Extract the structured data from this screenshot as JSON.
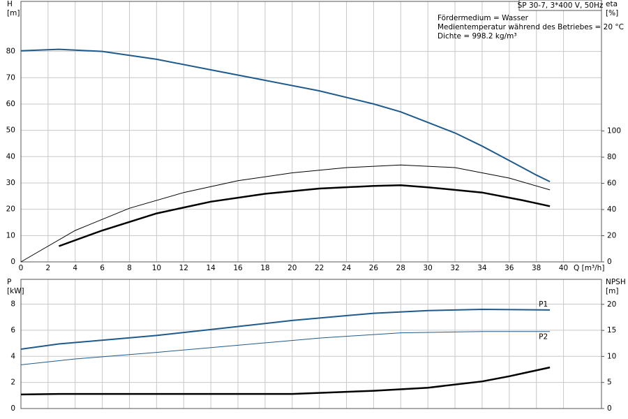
{
  "chart_data": [
    {
      "type": "line",
      "title": "SP 30-7, 3*400 V, 50Hz",
      "annotations": [
        "Fördermedium = Wasser",
        "Medientemperatur während des Betriebes = 20 °C",
        "Dichte = 998.2 kg/m³"
      ],
      "ylabel": [
        "H",
        "[m]"
      ],
      "y2label": [
        "eta",
        "[%]"
      ],
      "xlabel": "Q [m³/h]",
      "xlim": [
        0,
        42.8
      ],
      "xticks": [
        0,
        2,
        4,
        6,
        8,
        10,
        12,
        14,
        16,
        18,
        20,
        22,
        24,
        26,
        28,
        30,
        32,
        34,
        36,
        38,
        40
      ],
      "ylim": [
        0,
        99
      ],
      "yticks": [
        0,
        10,
        20,
        30,
        40,
        50,
        60,
        70,
        80
      ],
      "y2lim": [
        0,
        199
      ],
      "y2ticks": [
        0,
        20,
        40,
        60,
        80,
        100
      ],
      "show_xtick_labels": true,
      "grid": true,
      "series": [
        {
          "color": "#1f5a8c",
          "linewidth": 2,
          "axis": "y",
          "x": [
            0,
            2.8,
            6,
            10,
            14,
            18,
            22,
            26,
            28,
            30,
            32,
            34,
            36,
            38,
            39
          ],
          "values": [
            80.2,
            80.8,
            80,
            77,
            73,
            69,
            65,
            60,
            57,
            53,
            49,
            44,
            38.5,
            33,
            30.5
          ]
        },
        {
          "color": "#000000",
          "linewidth": 1,
          "axis": "y2",
          "x": [
            0,
            4,
            8,
            12,
            16,
            20,
            24,
            28,
            32,
            36,
            39
          ],
          "values": [
            0,
            24,
            41,
            53,
            62,
            68,
            72,
            74,
            72,
            64,
            55
          ]
        },
        {
          "color": "#000000",
          "linewidth": 2.5,
          "axis": "y2",
          "x": [
            2.8,
            6,
            10,
            14,
            18,
            22,
            26,
            28,
            30,
            34,
            37,
            39
          ],
          "values": [
            12,
            24,
            37,
            46,
            52,
            56,
            58,
            58.5,
            57,
            53,
            47,
            42.5
          ]
        }
      ]
    },
    {
      "type": "line",
      "ylabel": [
        "P",
        "[kW]"
      ],
      "y2label": [
        "NPSH",
        "[m]"
      ],
      "xlim": [
        0,
        42.8
      ],
      "xticks": [
        0,
        2,
        4,
        6,
        8,
        10,
        12,
        14,
        16,
        18,
        20,
        22,
        24,
        26,
        28,
        30,
        32,
        34,
        36,
        38,
        40
      ],
      "ylim": [
        0,
        9.9
      ],
      "yticks": [
        0,
        2,
        4,
        6,
        8
      ],
      "y2lim": [
        0,
        24.8
      ],
      "y2ticks": [
        0,
        5,
        10,
        15,
        20
      ],
      "show_xtick_labels": false,
      "grid": true,
      "series": [
        {
          "name": "P1",
          "color": "#1f5a8c",
          "linewidth": 2,
          "axis": "y",
          "x": [
            0,
            2.8,
            10,
            14,
            20,
            26,
            30,
            34,
            39
          ],
          "values": [
            4.55,
            4.95,
            5.6,
            6.05,
            6.75,
            7.3,
            7.5,
            7.6,
            7.55
          ]
        },
        {
          "name": "P2",
          "color": "#1f5a8c",
          "linewidth": 1,
          "axis": "y",
          "x": [
            0,
            4,
            10,
            16,
            22,
            28,
            34,
            39
          ],
          "values": [
            3.35,
            3.8,
            4.3,
            4.85,
            5.4,
            5.8,
            5.9,
            5.9
          ]
        },
        {
          "color": "#000000",
          "linewidth": 2.5,
          "axis": "y2",
          "x": [
            0,
            2.8,
            20,
            26,
            30,
            34,
            36,
            39
          ],
          "values": [
            2.7,
            2.8,
            2.8,
            3.4,
            4,
            5.2,
            6.2,
            7.9
          ]
        }
      ]
    }
  ]
}
